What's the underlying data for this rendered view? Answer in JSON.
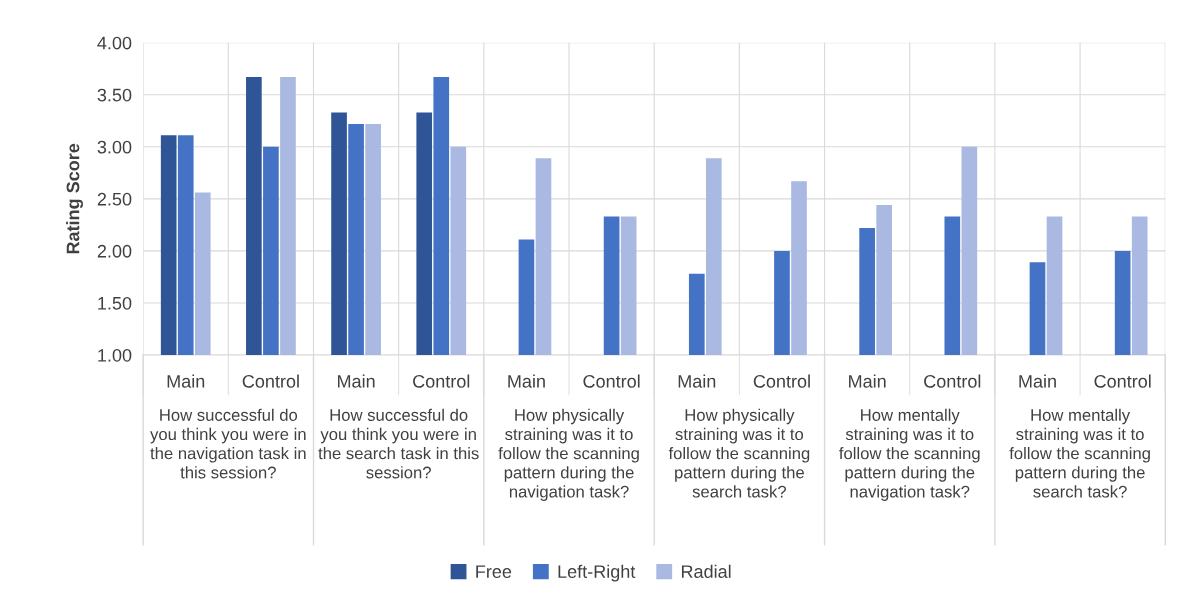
{
  "chart_data": {
    "type": "bar",
    "ylabel": "Rating Score",
    "categories": [
      "Main",
      "Control",
      "Main",
      "Control",
      "Main",
      "Control",
      "Main",
      "Control",
      "Main",
      "Control",
      "Main",
      "Control"
    ],
    "series": [
      {
        "name": "Free",
        "color": "#2f5597",
        "values": [
          3.11,
          3.67,
          3.33,
          3.33,
          null,
          null,
          null,
          null,
          null,
          null,
          null,
          null
        ]
      },
      {
        "name": "Left-Right",
        "color": "#4472c4",
        "values": [
          3.11,
          3.0,
          3.22,
          3.67,
          2.11,
          2.33,
          1.78,
          2.0,
          2.22,
          2.33,
          1.89,
          2.0
        ]
      },
      {
        "name": "Radial",
        "color": "#a9b9e1",
        "values": [
          2.56,
          3.67,
          3.22,
          3.0,
          2.89,
          2.33,
          2.89,
          2.67,
          2.44,
          3.0,
          2.33,
          2.33
        ]
      }
    ],
    "annotations": [
      "How successful do you think you were in the navigation task in this session?",
      "How successful do you think you were in the search task in this session?",
      "How physically straining was it to follow the scanning pattern during the navigation task?",
      "How physically straining was it to follow the scanning pattern during the search task?",
      "How mentally straining was it to follow the scanning pattern during the navigation task?",
      "How mentally straining was it to follow the scanning pattern during the search task?"
    ],
    "ylim": [
      1.0,
      4.0
    ],
    "yticks": [
      {
        "value": 1.0,
        "label": "1.00"
      },
      {
        "value": 1.5,
        "label": "1.50"
      },
      {
        "value": 2.0,
        "label": "2.00"
      },
      {
        "value": 2.5,
        "label": "2.50"
      },
      {
        "value": 3.0,
        "label": "3.00"
      },
      {
        "value": 3.5,
        "label": "3.50"
      },
      {
        "value": 4.0,
        "label": "4.00"
      }
    ],
    "grid": true,
    "legend": "bottom"
  }
}
